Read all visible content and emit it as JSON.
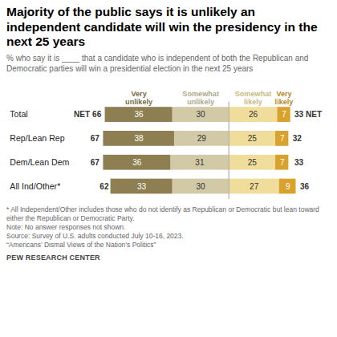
{
  "chart_data": {
    "type": "bar",
    "orientation": "horizontal",
    "stacked": true,
    "data_labels": true,
    "tick_labels": "y",
    "title": "Majority of the public says it is unlikely an independent candidate will win the presidency in the next 25 years",
    "subtitle": "% who say it is ____ that a candidate who is independent of both the Republican and Democratic parties will win a presidential election in the next 25 years",
    "categories": [
      "Total",
      "Rep/Lean Rep",
      "Dem/Lean Dem",
      "All Ind/Other*"
    ],
    "series": [
      {
        "name": "Very unlikely",
        "color": "#8d7f52",
        "values": [
          36,
          38,
          36,
          33
        ]
      },
      {
        "name": "Somewhat unlikely",
        "color": "#d2c9a7",
        "values": [
          30,
          29,
          31,
          30
        ]
      },
      {
        "name": "Somewhat likely",
        "color": "#f0dd9b",
        "values": [
          26,
          25,
          25,
          27
        ]
      },
      {
        "name": "Very likely",
        "color": "#d9a22d",
        "values": [
          7,
          7,
          7,
          9
        ]
      }
    ],
    "net_unlikely": {
      "values": [
        66,
        67,
        67,
        62
      ],
      "value_labels": [
        "NET 66",
        "67",
        "67",
        "62"
      ]
    },
    "net_likely": {
      "values": [
        33,
        32,
        33,
        36
      ],
      "value_labels": [
        "33 NET",
        "32",
        "33",
        "36"
      ]
    },
    "notes": [
      "* All Independent/Other includes those who do not identify as Republican or Democratic but lean toward either the Republican or Democratic Party.",
      "Note: No answer responses not shown.",
      "Source: Survey of U.S. adults conducted July 10-16, 2023.",
      "“Americans’ Dismal Views of the Nation’s Politics”"
    ],
    "credit": "PEW RESEARCH CENTER"
  }
}
